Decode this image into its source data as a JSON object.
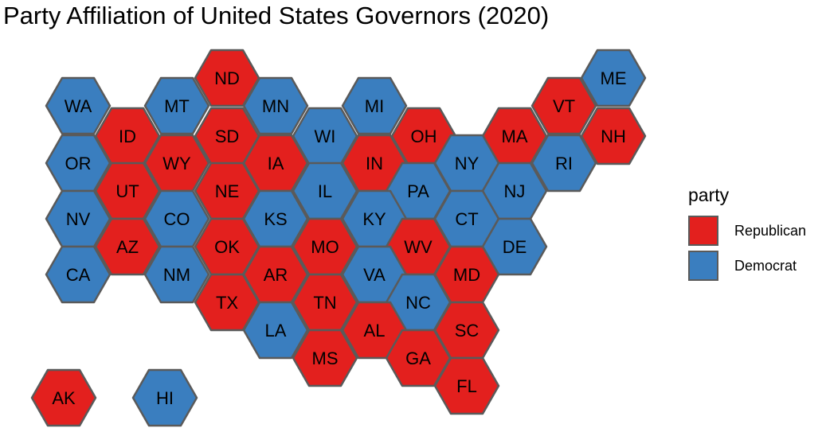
{
  "title": "Party Affiliation of United States Governors (2020)",
  "legend": {
    "title": "party",
    "entries": [
      {
        "key": "Republican",
        "label": "Republican",
        "color": "#e3201e"
      },
      {
        "key": "Democrat",
        "label": "Democrat",
        "color": "#3a7ebf"
      }
    ]
  },
  "map_style": {
    "type": "hexagon tile grid",
    "border_color": "#5a5a5a"
  },
  "states": [
    {
      "abbr": "ND",
      "party": "Republican"
    },
    {
      "abbr": "ME",
      "party": "Democrat"
    },
    {
      "abbr": "WA",
      "party": "Democrat"
    },
    {
      "abbr": "MT",
      "party": "Democrat"
    },
    {
      "abbr": "MN",
      "party": "Democrat"
    },
    {
      "abbr": "MI",
      "party": "Democrat"
    },
    {
      "abbr": "VT",
      "party": "Republican"
    },
    {
      "abbr": "ID",
      "party": "Republican"
    },
    {
      "abbr": "SD",
      "party": "Republican"
    },
    {
      "abbr": "WI",
      "party": "Democrat"
    },
    {
      "abbr": "OH",
      "party": "Republican"
    },
    {
      "abbr": "MA",
      "party": "Republican"
    },
    {
      "abbr": "NH",
      "party": "Republican"
    },
    {
      "abbr": "OR",
      "party": "Democrat"
    },
    {
      "abbr": "WY",
      "party": "Republican"
    },
    {
      "abbr": "IA",
      "party": "Republican"
    },
    {
      "abbr": "IN",
      "party": "Republican"
    },
    {
      "abbr": "NY",
      "party": "Democrat"
    },
    {
      "abbr": "RI",
      "party": "Democrat"
    },
    {
      "abbr": "UT",
      "party": "Republican"
    },
    {
      "abbr": "NE",
      "party": "Republican"
    },
    {
      "abbr": "IL",
      "party": "Democrat"
    },
    {
      "abbr": "PA",
      "party": "Democrat"
    },
    {
      "abbr": "NJ",
      "party": "Democrat"
    },
    {
      "abbr": "NV",
      "party": "Democrat"
    },
    {
      "abbr": "CO",
      "party": "Democrat"
    },
    {
      "abbr": "KS",
      "party": "Democrat"
    },
    {
      "abbr": "KY",
      "party": "Democrat"
    },
    {
      "abbr": "CT",
      "party": "Democrat"
    },
    {
      "abbr": "AZ",
      "party": "Republican"
    },
    {
      "abbr": "OK",
      "party": "Republican"
    },
    {
      "abbr": "MO",
      "party": "Republican"
    },
    {
      "abbr": "WV",
      "party": "Republican"
    },
    {
      "abbr": "DE",
      "party": "Democrat"
    },
    {
      "abbr": "CA",
      "party": "Democrat"
    },
    {
      "abbr": "NM",
      "party": "Democrat"
    },
    {
      "abbr": "AR",
      "party": "Republican"
    },
    {
      "abbr": "VA",
      "party": "Democrat"
    },
    {
      "abbr": "MD",
      "party": "Republican"
    },
    {
      "abbr": "TX",
      "party": "Republican"
    },
    {
      "abbr": "TN",
      "party": "Republican"
    },
    {
      "abbr": "NC",
      "party": "Democrat"
    },
    {
      "abbr": "LA",
      "party": "Democrat"
    },
    {
      "abbr": "AL",
      "party": "Republican"
    },
    {
      "abbr": "SC",
      "party": "Republican"
    },
    {
      "abbr": "MS",
      "party": "Republican"
    },
    {
      "abbr": "GA",
      "party": "Republican"
    },
    {
      "abbr": "FL",
      "party": "Republican"
    },
    {
      "abbr": "AK",
      "party": "Republican"
    },
    {
      "abbr": "HI",
      "party": "Democrat"
    }
  ]
}
